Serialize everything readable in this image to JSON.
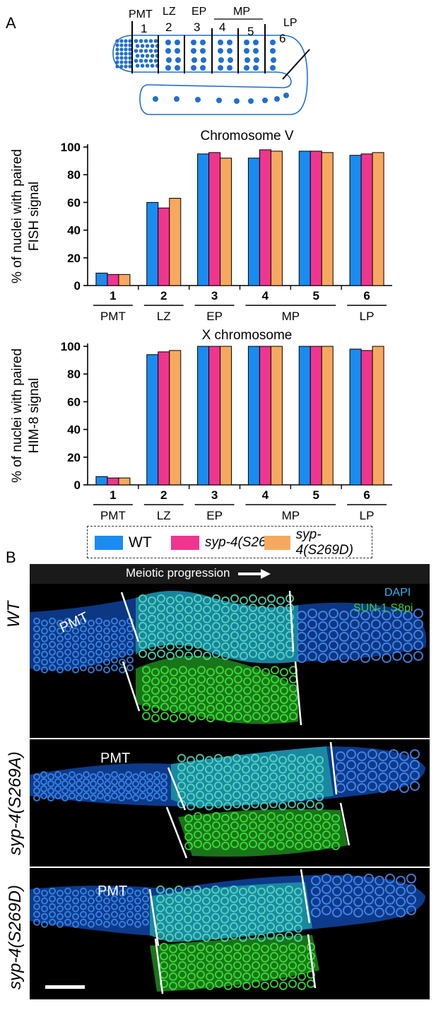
{
  "panel_a_label": "A",
  "panel_b_label": "B",
  "schematic": {
    "zone_labels": [
      "PMT",
      "LZ",
      "EP",
      "MP",
      "LP"
    ],
    "zone_numbers": [
      "1",
      "2",
      "3",
      "4",
      "5",
      "6"
    ],
    "colors": {
      "outline": "#1f6fd1",
      "nuclei": "#1f6fd1"
    }
  },
  "legend": {
    "items": [
      {
        "label": "WT",
        "color": "#1a8cf0"
      },
      {
        "label": "syp-4(S269A)",
        "color": "#f0358f"
      },
      {
        "label": "syp-4(S269D)",
        "color": "#f6a95e"
      }
    ]
  },
  "chart_data": [
    {
      "type": "bar",
      "title": "Chromosome V",
      "ylabel": "% of nuclei with paired FISH signal",
      "ylabel_lines": [
        "% of nuclei with paired",
        "FISH signal"
      ],
      "ylim": [
        0,
        100
      ],
      "yticks": [
        "0",
        "20",
        "40",
        "60",
        "80",
        "100"
      ],
      "categories": [
        "1",
        "2",
        "3",
        "4",
        "5",
        "6"
      ],
      "stage_groups": [
        "PMT",
        "LZ",
        "EP",
        "MP",
        "LP"
      ],
      "series": [
        {
          "name": "WT",
          "color": "#1a8cf0",
          "values": [
            9,
            60,
            95,
            92,
            97,
            94
          ]
        },
        {
          "name": "syp-4(S269A)",
          "color": "#f0358f",
          "values": [
            8,
            56,
            96,
            98,
            97,
            95
          ]
        },
        {
          "name": "syp-4(S269D)",
          "color": "#f6a95e",
          "values": [
            8,
            63,
            92,
            97,
            96,
            96
          ]
        }
      ],
      "grid": false
    },
    {
      "type": "bar",
      "title": "X chromosome",
      "ylabel": "% of nuclei with paired HIM-8 signal",
      "ylabel_lines": [
        "% of nuclei with paired",
        "HIM-8 signal"
      ],
      "ylim": [
        0,
        100
      ],
      "yticks": [
        "0",
        "20",
        "40",
        "60",
        "80",
        "100"
      ],
      "categories": [
        "1",
        "2",
        "3",
        "4",
        "5",
        "6"
      ],
      "stage_groups": [
        "PMT",
        "LZ",
        "EP",
        "MP",
        "LP"
      ],
      "series": [
        {
          "name": "WT",
          "color": "#1a8cf0",
          "values": [
            6,
            94,
            100,
            100,
            100,
            98
          ]
        },
        {
          "name": "syp-4(S269A)",
          "color": "#f0358f",
          "values": [
            5,
            96,
            100,
            100,
            100,
            97
          ]
        },
        {
          "name": "syp-4(S269D)",
          "color": "#f6a95e",
          "values": [
            5,
            97,
            100,
            100,
            100,
            100
          ]
        }
      ],
      "grid": false
    }
  ],
  "micrographs": {
    "header": "Meiotic progression",
    "channel_labels": [
      {
        "text": "DAPI",
        "color": "#31b5f5"
      },
      {
        "text": "SUN-1 S8pi",
        "color": "#3dd13a"
      }
    ],
    "pmt_label": "PMT",
    "genotypes": [
      "WT",
      "syp-4(S269A)",
      "syp-4(S269D)"
    ],
    "colors": {
      "dapi": "#1d6fe0",
      "sun1": "#2fd12a"
    }
  }
}
